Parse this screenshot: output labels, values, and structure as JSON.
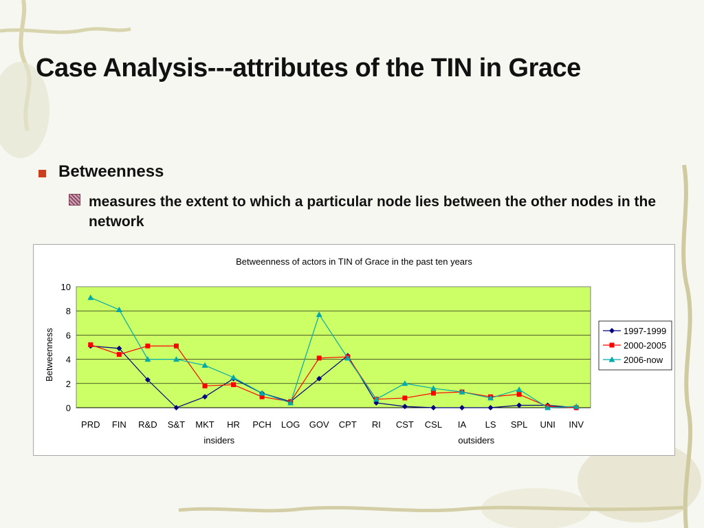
{
  "slide": {
    "title": "Case Analysis---attributes of the TIN in Grace",
    "bullet": "Betweenness",
    "sub_bullet": "measures the extent to which a particular node lies between the other nodes in the network"
  },
  "colors": {
    "plot_bg": "#ccff66",
    "bullet_square": "#c8401e"
  },
  "chart_data": {
    "type": "line",
    "title": "Betweenness of actors in TIN of Grace in the past ten years",
    "xlabel": "",
    "ylabel": "Betweenness",
    "ylim": [
      0,
      10
    ],
    "yticks": [
      0,
      2,
      4,
      6,
      8,
      10
    ],
    "grid": true,
    "legend": "right",
    "categories": [
      "PRD",
      "FIN",
      "R&D",
      "S&T",
      "MKT",
      "HR",
      "PCH",
      "LOG",
      "GOV",
      "CPT",
      "RI",
      "CST",
      "CSL",
      "IA",
      "LS",
      "SPL",
      "UNI",
      "INV"
    ],
    "groups": [
      {
        "label": "insiders",
        "from": 0,
        "to": 9
      },
      {
        "label": "outsiders",
        "from": 10,
        "to": 17
      }
    ],
    "series": [
      {
        "name": "1997-1999",
        "color": "#000080",
        "marker": "diamond",
        "values": [
          5.1,
          4.9,
          2.3,
          0.0,
          0.9,
          2.4,
          1.2,
          0.5,
          2.4,
          4.3,
          0.4,
          0.1,
          0.0,
          0.0,
          0.0,
          0.2,
          0.2,
          0.0
        ]
      },
      {
        "name": "2000-2005",
        "color": "#ff0000",
        "marker": "square",
        "values": [
          5.2,
          4.4,
          5.1,
          5.1,
          1.8,
          1.9,
          0.9,
          0.5,
          4.1,
          4.2,
          0.7,
          0.8,
          1.2,
          1.3,
          0.9,
          1.1,
          0.1,
          0.0
        ]
      },
      {
        "name": "2006-now",
        "color": "#00aaaa",
        "marker": "triangle",
        "values": [
          9.1,
          8.1,
          4.0,
          4.0,
          3.5,
          2.5,
          1.2,
          0.4,
          7.7,
          4.1,
          0.7,
          2.0,
          1.6,
          1.3,
          0.8,
          1.5,
          0.0,
          0.1
        ]
      }
    ]
  }
}
